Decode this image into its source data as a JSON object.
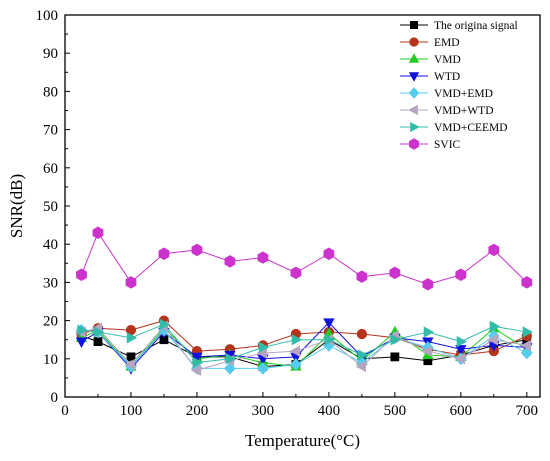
{
  "chart_data": {
    "type": "line",
    "xlabel": "Temperature(°C)",
    "ylabel": "SNR(dB)",
    "xlim": [
      0,
      720
    ],
    "ylim": [
      0,
      100
    ],
    "x_ticks": [
      0,
      100,
      200,
      300,
      400,
      500,
      600,
      700
    ],
    "y_ticks": [
      0,
      10,
      20,
      30,
      40,
      50,
      60,
      70,
      80,
      90,
      100
    ],
    "x_tick_labels": [
      "0",
      "100",
      "200",
      "300",
      "400",
      "500",
      "600",
      "700"
    ],
    "y_tick_labels": [
      "0",
      "10",
      "20",
      "30",
      "40",
      "50",
      "60",
      "70",
      "80",
      "90",
      "100"
    ],
    "legend_position": "top-right",
    "x": [
      25,
      50,
      100,
      150,
      200,
      250,
      300,
      350,
      400,
      450,
      500,
      550,
      600,
      650,
      700
    ],
    "series": [
      {
        "name": "The origina signal",
        "color": "#000000",
        "marker": "square",
        "values": [
          16,
          14.5,
          10.5,
          15,
          10.5,
          10.5,
          8,
          8.5,
          15,
          10,
          10.5,
          9.5,
          11,
          13.5,
          15
        ]
      },
      {
        "name": "EMD",
        "color": "#b5341c",
        "marker": "circle",
        "values": [
          16.5,
          18,
          17.5,
          20,
          12,
          12.5,
          13.5,
          16.5,
          17,
          16.5,
          15.5,
          12.5,
          11,
          12,
          16
        ]
      },
      {
        "name": "VMD",
        "color": "#22cc22",
        "marker": "triangle-up",
        "values": [
          15.5,
          17.5,
          8,
          18,
          10,
          11,
          9,
          8,
          16.5,
          9.5,
          17,
          11,
          10.5,
          18,
          12.5
        ]
      },
      {
        "name": "WTD",
        "color": "#1010e0",
        "marker": "triangle-down",
        "values": [
          14.5,
          17,
          7.5,
          17,
          10.5,
          11,
          10,
          10.5,
          19.5,
          10.5,
          15.5,
          14.5,
          12.5,
          13.5,
          13
        ]
      },
      {
        "name": "VMD+EMD",
        "color": "#55ccee",
        "marker": "diamond",
        "values": [
          17.5,
          17,
          8,
          17.5,
          7.5,
          7.5,
          7.5,
          8.5,
          13.5,
          9,
          15.5,
          13,
          10,
          16,
          11.5
        ]
      },
      {
        "name": "VMD+WTD",
        "color": "#b7a4c0",
        "marker": "triangle-left",
        "values": [
          17,
          18,
          8.5,
          18.5,
          7,
          9.5,
          11.5,
          12,
          15,
          8,
          16,
          12,
          10,
          15,
          13.5
        ]
      },
      {
        "name": "VMD+CEEMD",
        "color": "#33bbaa",
        "marker": "triangle-right",
        "values": [
          17.5,
          17,
          15.5,
          19,
          9,
          10,
          13,
          15,
          15,
          11,
          15,
          17,
          14.5,
          18.5,
          17
        ]
      },
      {
        "name": "SVIC",
        "color": "#cc33cc",
        "marker": "hexagon",
        "values": [
          32,
          43,
          30,
          37.5,
          38.5,
          35.5,
          36.5,
          32.5,
          37.5,
          31.5,
          32.5,
          29.5,
          32,
          38.5,
          30
        ]
      }
    ]
  }
}
